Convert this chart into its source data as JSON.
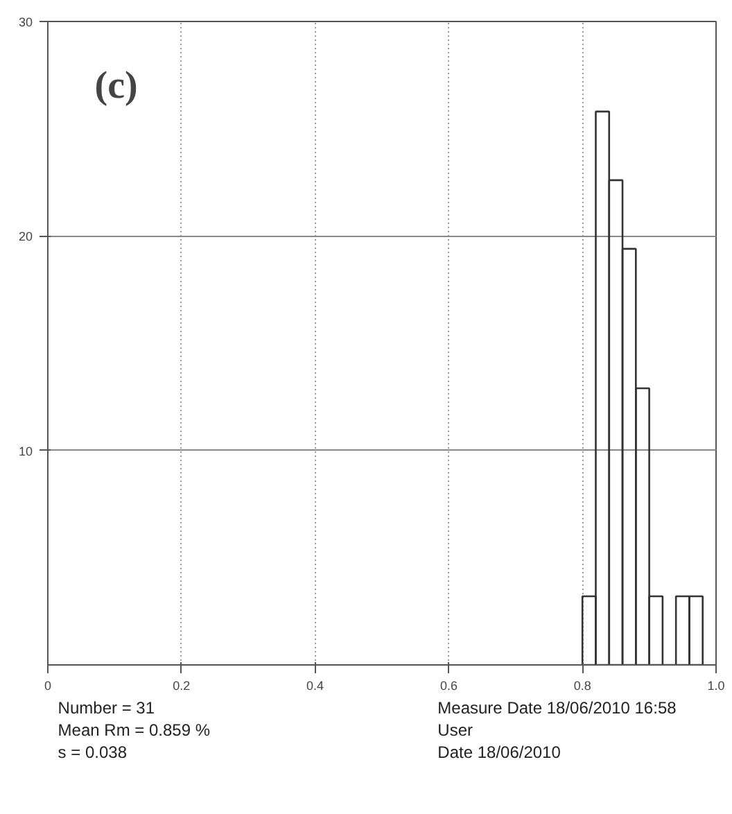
{
  "chart_data": {
    "type": "histogram",
    "title": "(c)",
    "bins": [
      0.8,
      0.82,
      0.84,
      0.86,
      0.88,
      0.9,
      0.92,
      0.94,
      0.96,
      0.98
    ],
    "values": [
      3.2,
      25.8,
      22.6,
      19.4,
      12.9,
      3.2,
      0,
      3.2,
      3.2
    ],
    "color": "#333333",
    "xlim": [
      0,
      1.0
    ],
    "xticks": [
      0,
      0.2,
      0.4,
      0.6,
      0.8,
      {
        "value": 1.0,
        "label": "1.0"
      }
    ],
    "ylim": [
      0,
      30
    ],
    "yticks": [
      10,
      20,
      30
    ],
    "grid": true,
    "annotations": [
      "Number = 31",
      "Mean Rm = 0.859 %",
      "s = 0.038",
      "Measure Date 18/06/2010 16:58",
      "User",
      "Date 18/06/2010"
    ]
  }
}
